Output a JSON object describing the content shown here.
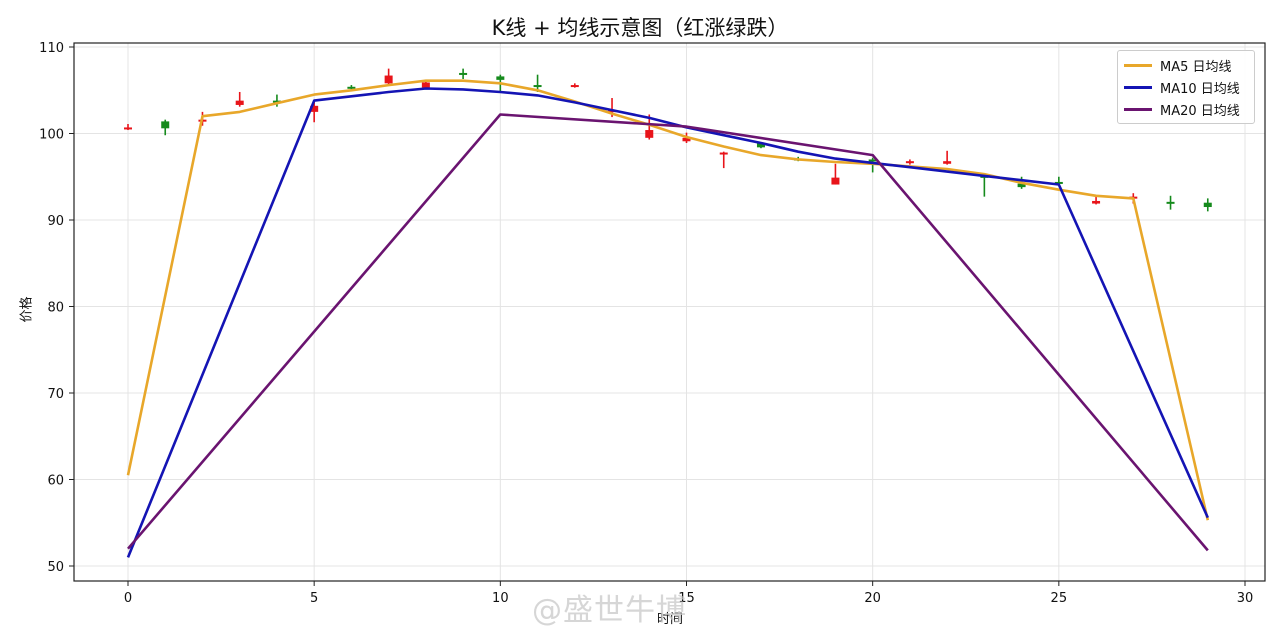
{
  "chart_data": {
    "type": "line",
    "title": "K线 + 均线示意图（红涨绿跌）",
    "xlabel": "时间",
    "ylabel": "价格",
    "xlim": [
      -1.5,
      30.5
    ],
    "ylim": [
      48,
      110.5
    ],
    "xticks": [
      0,
      5,
      10,
      15,
      20,
      25,
      30
    ],
    "yticks": [
      50,
      60,
      70,
      80,
      90,
      100,
      110
    ],
    "grid": true,
    "legend_position": "upper right",
    "colors": {
      "up": "#e8141a",
      "down": "#158a1c",
      "ma5": "#e8a72a",
      "ma10": "#1414b4",
      "ma20": "#6a1470"
    },
    "candles": [
      {
        "x": 0,
        "open": 100.5,
        "close": 100.7,
        "high": 101.1,
        "low": 100.4
      },
      {
        "x": 1,
        "open": 101.4,
        "close": 100.6,
        "high": 101.6,
        "low": 99.8
      },
      {
        "x": 2,
        "open": 101.6,
        "close": 101.6,
        "high": 102.5,
        "low": 100.9
      },
      {
        "x": 3,
        "open": 103.3,
        "close": 103.8,
        "high": 104.8,
        "low": 103.1
      },
      {
        "x": 4,
        "open": 103.8,
        "close": 103.7,
        "high": 104.5,
        "low": 103.1
      },
      {
        "x": 5,
        "open": 102.5,
        "close": 103.2,
        "high": 103.8,
        "low": 101.3
      },
      {
        "x": 6,
        "open": 105.4,
        "close": 105.3,
        "high": 105.6,
        "low": 105.1
      },
      {
        "x": 7,
        "open": 105.8,
        "close": 106.7,
        "high": 107.5,
        "low": 105.6
      },
      {
        "x": 8,
        "open": 105.3,
        "close": 105.9,
        "high": 106.0,
        "low": 105.2
      },
      {
        "x": 9,
        "open": 107.0,
        "close": 106.8,
        "high": 107.5,
        "low": 106.3
      },
      {
        "x": 10,
        "open": 106.6,
        "close": 106.2,
        "high": 106.8,
        "low": 104.8
      },
      {
        "x": 11,
        "open": 105.6,
        "close": 105.5,
        "high": 106.8,
        "low": 104.8
      },
      {
        "x": 12,
        "open": 105.5,
        "close": 105.6,
        "high": 105.8,
        "low": 105.3
      },
      {
        "x": 13,
        "open": 102.6,
        "close": 102.7,
        "high": 104.1,
        "low": 101.9
      },
      {
        "x": 14,
        "open": 99.5,
        "close": 100.4,
        "high": 102.2,
        "low": 99.3
      },
      {
        "x": 15,
        "open": 99.1,
        "close": 99.5,
        "high": 100.1,
        "low": 98.9
      },
      {
        "x": 16,
        "open": 97.7,
        "close": 97.8,
        "high": 97.9,
        "low": 96.0
      },
      {
        "x": 17,
        "open": 98.9,
        "close": 98.4,
        "high": 99.0,
        "low": 98.3
      },
      {
        "x": 18,
        "open": 97.1,
        "close": 97.0,
        "high": 97.3,
        "low": 96.8
      },
      {
        "x": 19,
        "open": 94.1,
        "close": 94.9,
        "high": 96.5,
        "low": 94.1
      },
      {
        "x": 20,
        "open": 97.0,
        "close": 96.8,
        "high": 97.2,
        "low": 95.5
      },
      {
        "x": 21,
        "open": 96.6,
        "close": 96.8,
        "high": 97.0,
        "low": 96.4
      },
      {
        "x": 22,
        "open": 96.5,
        "close": 96.8,
        "high": 98.0,
        "low": 96.4
      },
      {
        "x": 23,
        "open": 95.1,
        "close": 94.9,
        "high": 95.2,
        "low": 92.7
      },
      {
        "x": 24,
        "open": 94.2,
        "close": 93.8,
        "high": 95.0,
        "low": 93.6
      },
      {
        "x": 25,
        "open": 94.4,
        "close": 94.2,
        "high": 95.0,
        "low": 94.0
      },
      {
        "x": 26,
        "open": 91.9,
        "close": 92.2,
        "high": 92.8,
        "low": 91.8
      },
      {
        "x": 27,
        "open": 92.6,
        "close": 92.7,
        "high": 93.1,
        "low": 91.9
      },
      {
        "x": 28,
        "open": 92.1,
        "close": 92.0,
        "high": 92.8,
        "low": 91.2
      },
      {
        "x": 29,
        "open": 92.0,
        "close": 91.5,
        "high": 92.5,
        "low": 91.0
      }
    ],
    "series": [
      {
        "name": "MA5 日均线",
        "color": "#e8a72a",
        "x": [
          0,
          2,
          3,
          4,
          5,
          6,
          7,
          8,
          9,
          10,
          11,
          12,
          13,
          14,
          15,
          16,
          17,
          18,
          19,
          20,
          21,
          22,
          23,
          24,
          25,
          26,
          27,
          29
        ],
        "values": [
          60.5,
          102.0,
          102.5,
          103.5,
          104.5,
          105.0,
          105.6,
          106.1,
          106.1,
          105.8,
          105.0,
          103.7,
          102.3,
          101.0,
          99.6,
          98.5,
          97.5,
          97.0,
          96.7,
          96.5,
          96.2,
          95.9,
          95.3,
          94.3,
          93.5,
          92.8,
          92.5,
          55.3
        ]
      },
      {
        "name": "MA10 日均线",
        "color": "#1414b4",
        "x": [
          0,
          5,
          6,
          7,
          8,
          9,
          10,
          11,
          12,
          13,
          14,
          15,
          16,
          17,
          18,
          19,
          20,
          21,
          22,
          23,
          24,
          25,
          29
        ],
        "values": [
          51.0,
          103.8,
          104.3,
          104.8,
          105.2,
          105.1,
          104.8,
          104.4,
          103.6,
          102.7,
          101.8,
          100.7,
          99.8,
          98.9,
          97.9,
          97.1,
          96.6,
          96.1,
          95.6,
          95.1,
          94.6,
          94.1,
          55.6
        ]
      },
      {
        "name": "MA20 日均线",
        "color": "#6a1470",
        "x": [
          0,
          10,
          15,
          20,
          29
        ],
        "values": [
          52.0,
          102.2,
          100.8,
          97.5,
          51.8
        ]
      }
    ]
  },
  "title": "K线 + 均线示意图（红涨绿跌）",
  "axes": {
    "xlabel": "时间",
    "ylabel": "价格",
    "xtick_labels": [
      "0",
      "5",
      "10",
      "15",
      "20",
      "25",
      "30"
    ],
    "ytick_labels": [
      "50",
      "60",
      "70",
      "80",
      "90",
      "100",
      "110"
    ]
  },
  "legend": {
    "items": [
      {
        "label": "MA5 日均线",
        "color": "#e8a72a"
      },
      {
        "label": "MA10 日均线",
        "color": "#1414b4"
      },
      {
        "label": "MA20 日均线",
        "color": "#6a1470"
      }
    ]
  },
  "watermark": "@盛世牛博"
}
